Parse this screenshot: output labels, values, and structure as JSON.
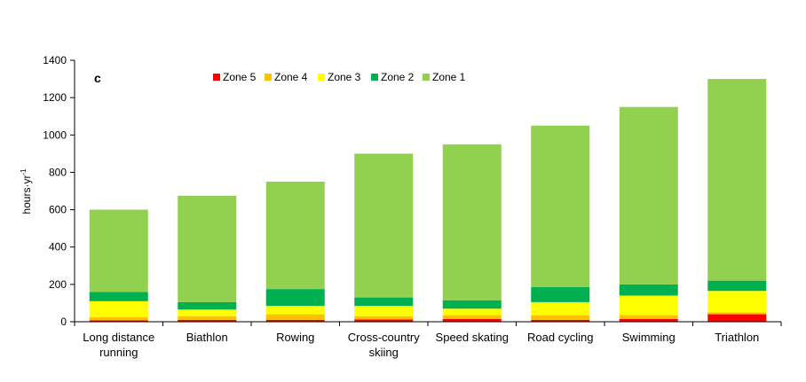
{
  "chart_data": {
    "type": "bar",
    "stacked": true,
    "panel_label": "c",
    "ylabel": "hours·yr",
    "ylabel_sup": "-1",
    "ylim": [
      0,
      1400
    ],
    "yticks": [
      "0",
      "200",
      "400",
      "600",
      "800",
      "1000",
      "1200",
      "1400"
    ],
    "grid": false,
    "legend_position": "top",
    "categories": [
      [
        "Long distance",
        "running"
      ],
      [
        "Biathlon"
      ],
      [
        "Rowing"
      ],
      [
        "Cross-country",
        "skiing"
      ],
      [
        "Speed skating"
      ],
      [
        "Road cycling"
      ],
      [
        "Swimming"
      ],
      [
        "Triathlon"
      ]
    ],
    "series": [
      {
        "name": "Zone 5",
        "color": "#ff0000",
        "values": [
          8,
          10,
          10,
          12,
          15,
          10,
          15,
          40
        ]
      },
      {
        "name": "Zone 4",
        "color": "#ffc000",
        "values": [
          17,
          20,
          30,
          18,
          20,
          25,
          20,
          10
        ]
      },
      {
        "name": "Zone 3",
        "color": "#ffff00",
        "values": [
          85,
          35,
          45,
          55,
          35,
          70,
          105,
          115
        ]
      },
      {
        "name": "Zone 2",
        "color": "#00b050",
        "values": [
          50,
          40,
          90,
          45,
          45,
          80,
          60,
          55
        ]
      },
      {
        "name": "Zone 1",
        "color": "#92d050",
        "values": [
          440,
          570,
          575,
          770,
          835,
          865,
          950,
          1080
        ]
      }
    ],
    "legend_order": [
      "Zone 5",
      "Zone 4",
      "Zone 3",
      "Zone 2",
      "Zone 1"
    ]
  }
}
